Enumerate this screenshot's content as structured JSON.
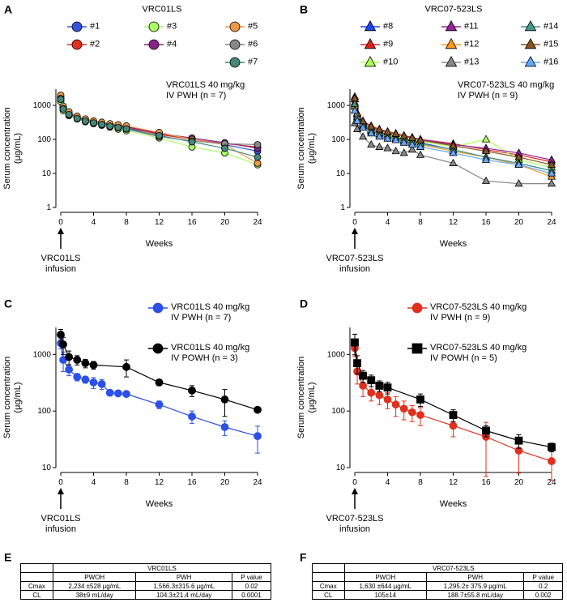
{
  "chart_data": [
    {
      "type": "line",
      "panel": "A",
      "title": "VRC01LS",
      "xlabel": "Weeks",
      "ylabel": [
        "Serum concentration",
        "(μg/mL)"
      ],
      "log_y": true,
      "xlim": [
        0,
        24
      ],
      "xticks": [
        0,
        4,
        8,
        12,
        16,
        20,
        24
      ],
      "ylim": [
        1,
        3000
      ],
      "yticks": [
        1,
        10,
        100,
        1000
      ],
      "annotations": [
        "VRC01LS 40 mg/kg\nIV PWH (n = 7)",
        "VRC01LS\ninfusion"
      ],
      "x": [
        0,
        0.3,
        1,
        2,
        3,
        4,
        5,
        6,
        7,
        8,
        12,
        16,
        20,
        24
      ],
      "series": [
        {
          "name": "#1",
          "color": "#3355dd",
          "marker": "circle",
          "values": [
            1400,
            750,
            550,
            420,
            350,
            300,
            280,
            250,
            230,
            210,
            150,
            100,
            70,
            45
          ]
        },
        {
          "name": "#2",
          "color": "#e03020",
          "marker": "circle",
          "values": [
            1700,
            900,
            600,
            450,
            380,
            330,
            300,
            270,
            250,
            230,
            140,
            100,
            75,
            60
          ]
        },
        {
          "name": "#3",
          "color": "#aaff66",
          "marker": "circle",
          "values": [
            1300,
            700,
            500,
            400,
            330,
            290,
            260,
            230,
            200,
            180,
            110,
            60,
            40,
            18
          ]
        },
        {
          "name": "#4",
          "color": "#882288",
          "marker": "circle",
          "values": [
            1800,
            850,
            600,
            460,
            390,
            340,
            310,
            280,
            260,
            240,
            150,
            110,
            80,
            55
          ]
        },
        {
          "name": "#5",
          "color": "#ee9944",
          "marker": "circle",
          "values": [
            2000,
            950,
            650,
            480,
            400,
            350,
            320,
            290,
            270,
            250,
            160,
            100,
            70,
            20
          ]
        },
        {
          "name": "#6",
          "color": "#888888",
          "marker": "circle",
          "values": [
            1600,
            800,
            520,
            400,
            340,
            300,
            270,
            240,
            220,
            200,
            120,
            90,
            75,
            70
          ]
        },
        {
          "name": "#7",
          "color": "#44887a",
          "marker": "circle",
          "values": [
            1500,
            780,
            540,
            410,
            345,
            305,
            275,
            245,
            225,
            205,
            130,
            85,
            55,
            30
          ]
        }
      ]
    },
    {
      "type": "line",
      "panel": "B",
      "title": "VRC07-523LS",
      "xlabel": "Weeks",
      "ylabel": [
        "Serum concentration",
        "(μg/mL)"
      ],
      "log_y": true,
      "xlim": [
        0,
        24
      ],
      "xticks": [
        0,
        4,
        8,
        12,
        16,
        20,
        24
      ],
      "ylim": [
        1,
        3000
      ],
      "yticks": [
        1,
        10,
        100,
        1000
      ],
      "annotations": [
        "VRC07-523LS 40 mg/kg\nIV PWH (n = 9)",
        "VRC07-523LS\ninfusion"
      ],
      "x": [
        0,
        0.3,
        1,
        2,
        3,
        4,
        5,
        6,
        7,
        8,
        12,
        16,
        20,
        24
      ],
      "series": [
        {
          "name": "#8",
          "color": "#2244ee",
          "marker": "triangle",
          "values": [
            1200,
            500,
            300,
            200,
            160,
            140,
            120,
            100,
            90,
            80,
            50,
            30,
            20,
            12
          ]
        },
        {
          "name": "#9",
          "color": "#dd2222",
          "marker": "triangle",
          "values": [
            1800,
            600,
            350,
            250,
            200,
            170,
            150,
            130,
            115,
            100,
            75,
            50,
            35,
            22
          ]
        },
        {
          "name": "#10",
          "color": "#aaff55",
          "marker": "triangle",
          "values": [
            900,
            450,
            280,
            190,
            150,
            130,
            120,
            110,
            95,
            90,
            60,
            100,
            25,
            15
          ]
        },
        {
          "name": "#11",
          "color": "#992299",
          "marker": "triangle",
          "values": [
            1500,
            550,
            330,
            230,
            185,
            160,
            145,
            125,
            110,
            100,
            70,
            55,
            40,
            25
          ]
        },
        {
          "name": "#12",
          "color": "#ff9922",
          "marker": "triangle",
          "values": [
            1000,
            400,
            250,
            170,
            140,
            120,
            105,
            90,
            80,
            70,
            45,
            30,
            18,
            8
          ]
        },
        {
          "name": "#13",
          "color": "#888888",
          "marker": "triangle",
          "values": [
            300,
            200,
            120,
            70,
            60,
            55,
            45,
            40,
            50,
            35,
            20,
            6,
            5,
            5
          ]
        },
        {
          "name": "#14",
          "color": "#449988",
          "marker": "triangle",
          "values": [
            1100,
            450,
            270,
            180,
            150,
            125,
            110,
            95,
            85,
            75,
            50,
            30,
            20,
            12
          ]
        },
        {
          "name": "#15",
          "color": "#885522",
          "marker": "triangle",
          "values": [
            1600,
            580,
            340,
            240,
            195,
            165,
            145,
            125,
            110,
            95,
            65,
            45,
            30,
            18
          ]
        },
        {
          "name": "#16",
          "color": "#66aaff",
          "marker": "triangle",
          "values": [
            700,
            350,
            220,
            150,
            120,
            105,
            95,
            80,
            70,
            60,
            40,
            25,
            18,
            10
          ]
        }
      ]
    },
    {
      "type": "line",
      "panel": "C",
      "xlabel": "Weeks",
      "ylabel": [
        "Serum concentration",
        "(μg/mL)"
      ],
      "log_y": true,
      "xlim": [
        0,
        24
      ],
      "xticks": [
        0,
        4,
        8,
        12,
        16,
        20,
        24
      ],
      "ylim": [
        10,
        3000
      ],
      "yticks": [
        10,
        100,
        1000
      ],
      "annotations": [
        "VRC01LS\ninfusion"
      ],
      "series": [
        {
          "name": "VRC01LS 40 mg/kg\nIV PWH (n = 7)",
          "color": "#2c4fe6",
          "marker": "circle",
          "x": [
            0,
            0.3,
            1,
            2,
            3,
            4,
            5,
            6,
            7,
            8,
            12,
            16,
            20,
            24
          ],
          "values": [
            1566,
            800,
            540,
            400,
            360,
            320,
            300,
            210,
            205,
            200,
            130,
            80,
            52,
            36
          ],
          "errors": [
            316,
            300,
            120,
            60,
            50,
            70,
            60,
            20,
            15,
            20,
            20,
            20,
            15,
            18
          ]
        },
        {
          "name": "VRC01LS 40 mg/kg\nIV POWH (n = 3)",
          "color": "#000000",
          "marker": "circle",
          "x": [
            0,
            0.3,
            1,
            2,
            3,
            4,
            8,
            12,
            16,
            20,
            24
          ],
          "values": [
            2234,
            1500,
            900,
            800,
            700,
            650,
            600,
            320,
            230,
            160,
            105
          ],
          "errors": [
            528,
            500,
            250,
            150,
            120,
            100,
            200,
            40,
            50,
            80,
            10
          ]
        }
      ]
    },
    {
      "type": "line",
      "panel": "D",
      "xlabel": "Weeks",
      "ylabel": [
        "Serum concentration",
        "(μg/mL)"
      ],
      "log_y": true,
      "xlim": [
        0,
        24
      ],
      "xticks": [
        0,
        4,
        8,
        12,
        16,
        20,
        24
      ],
      "ylim": [
        10,
        3000
      ],
      "yticks": [
        10,
        100,
        1000
      ],
      "annotations": [
        "VRC07-523LS\ninfusion"
      ],
      "series": [
        {
          "name": "VRC07-523LS 40 mg/kg\nIV PWH (n = 9)",
          "color": "#e0301e",
          "marker": "circle",
          "x": [
            0,
            0.3,
            1,
            2,
            3,
            4,
            5,
            6,
            7,
            8,
            12,
            16,
            20,
            24
          ],
          "values": [
            1295,
            500,
            280,
            210,
            190,
            160,
            130,
            110,
            95,
            85,
            55,
            35,
            20,
            13
          ],
          "errors": [
            376,
            200,
            100,
            60,
            60,
            50,
            50,
            40,
            30,
            30,
            20,
            28,
            12,
            7
          ]
        },
        {
          "name": "VRC07-523LS 40 mg/kg\nIV POWH (n = 5)",
          "color": "#000000",
          "marker": "square",
          "x": [
            0,
            0.3,
            1,
            2,
            3,
            4,
            8,
            12,
            16,
            20,
            24
          ],
          "values": [
            1630,
            700,
            420,
            350,
            280,
            260,
            160,
            85,
            45,
            30,
            23
          ],
          "errors": [
            644,
            250,
            100,
            80,
            60,
            60,
            40,
            20,
            10,
            8,
            4
          ]
        }
      ]
    }
  ],
  "tables": [
    {
      "panel": "E",
      "title": "VRC01LS",
      "columns": [
        "PWOH",
        "PWH",
        "P value"
      ],
      "rows": [
        [
          "Cmax",
          "2,234 ±528 µg/mL",
          "1,566.3±315.6 µg/mL",
          "0.02"
        ],
        [
          "CL",
          "38±9 mL/day",
          "104.3±21.4 mL/day",
          "0.0001"
        ]
      ]
    },
    {
      "panel": "F",
      "title": "VRC07-523LS",
      "columns": [
        "PWOH",
        "PWH",
        "P value"
      ],
      "rows": [
        [
          "Cmax",
          "1,630 ±644 µg/mL",
          "1,295.2± 375.9 µg/mL",
          "0.2"
        ],
        [
          "CL",
          "105±14",
          "188.7±55.8 mL/day",
          "0.002"
        ]
      ]
    }
  ]
}
